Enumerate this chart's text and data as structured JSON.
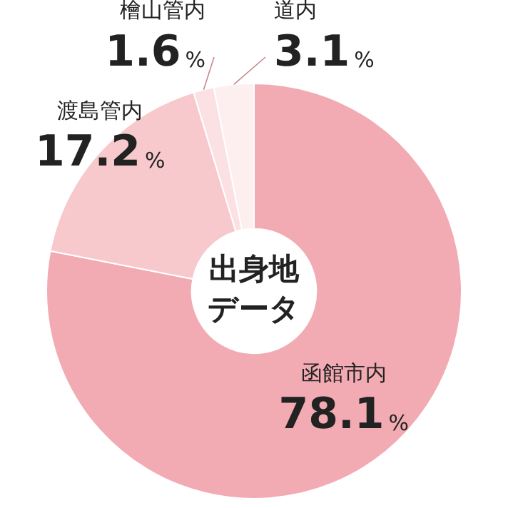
{
  "chart_data": {
    "type": "donut",
    "title": "出身地データ",
    "categories": [
      "函館市内",
      "渡島管内",
      "檜山管内",
      "道内"
    ],
    "values": [
      78.1,
      17.2,
      1.6,
      3.1
    ],
    "value_labels": [
      "78.1%",
      "17.2%",
      "1.6%",
      "3.1%"
    ],
    "colors": [
      "#f2abb2",
      "#f7c9cd",
      "#fbe1e3",
      "#fdeef0"
    ],
    "legend": false
  }
}
